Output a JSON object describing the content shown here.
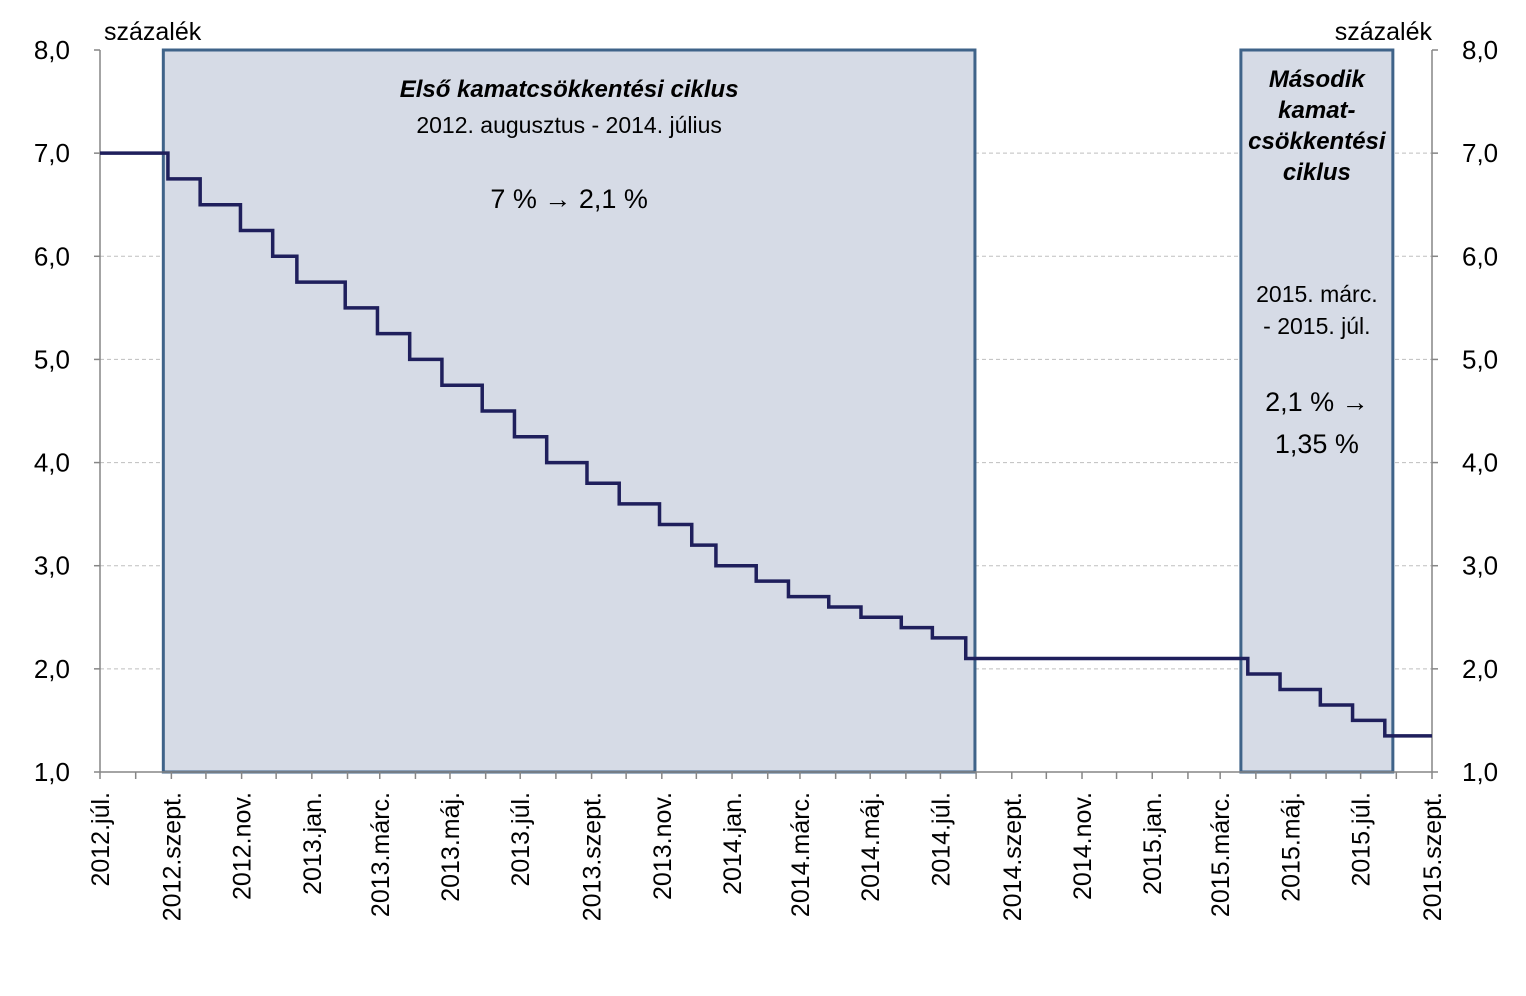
{
  "chart_data": {
    "type": "line",
    "unit_left": "százalék",
    "unit_right": "százalék",
    "ylim": [
      1.0,
      8.0
    ],
    "yticks": [
      "1,0",
      "2,0",
      "3,0",
      "4,0",
      "5,0",
      "6,0",
      "7,0",
      "8,0"
    ],
    "xlim": [
      "2012-07-01",
      "2015-09-01"
    ],
    "x_tick_labels": [
      "2012.júl.",
      "2012.szept.",
      "2012.nov.",
      "2013.jan.",
      "2013.márc.",
      "2013.máj.",
      "2013.júl.",
      "2013.szept.",
      "2013.nov.",
      "2014.jan.",
      "2014.márc.",
      "2014.máj.",
      "2014.júl.",
      "2014.szept.",
      "2014.nov.",
      "2015.jan.",
      "2015.márc.",
      "2015.máj.",
      "2015.júl.",
      "2015.szept."
    ],
    "grid": true,
    "colors": {
      "line": "#1f1f5c",
      "shade_fill": "#d6dbe6",
      "shade_stroke": "#3f6389",
      "grid": "#bfbfbf"
    },
    "series": [
      {
        "step": true,
        "points": [
          [
            "2012-07-01",
            7.0
          ],
          [
            "2012-08-29",
            6.75
          ],
          [
            "2012-09-26",
            6.5
          ],
          [
            "2012-10-31",
            6.25
          ],
          [
            "2012-11-28",
            6.0
          ],
          [
            "2012-12-19",
            5.75
          ],
          [
            "2013-01-30",
            5.5
          ],
          [
            "2013-02-27",
            5.25
          ],
          [
            "2013-03-27",
            5.0
          ],
          [
            "2013-04-24",
            4.75
          ],
          [
            "2013-05-29",
            4.5
          ],
          [
            "2013-06-26",
            4.25
          ],
          [
            "2013-07-24",
            4.0
          ],
          [
            "2013-08-28",
            3.8
          ],
          [
            "2013-09-25",
            3.6
          ],
          [
            "2013-10-30",
            3.4
          ],
          [
            "2013-11-27",
            3.2
          ],
          [
            "2013-12-18",
            3.0
          ],
          [
            "2014-01-22",
            2.85
          ],
          [
            "2014-02-19",
            2.7
          ],
          [
            "2014-03-26",
            2.6
          ],
          [
            "2014-04-23",
            2.5
          ],
          [
            "2014-05-28",
            2.4
          ],
          [
            "2014-06-24",
            2.3
          ],
          [
            "2014-07-23",
            2.1
          ],
          [
            "2015-03-25",
            1.95
          ],
          [
            "2015-04-22",
            1.8
          ],
          [
            "2015-05-27",
            1.65
          ],
          [
            "2015-06-24",
            1.5
          ],
          [
            "2015-07-22",
            1.35
          ],
          [
            "2015-09-01",
            1.35
          ]
        ]
      }
    ],
    "shaded_periods": [
      {
        "start": "2012-08-25",
        "end": "2014-07-31",
        "title": "Első kamatcsökkentési  ciklus",
        "lines": [
          "2012. augusztus - 2014. július"
        ],
        "change": "7 % → 2,1 %"
      },
      {
        "start": "2015-03-19",
        "end": "2015-07-29",
        "title_lines": [
          "Második",
          "kamat-",
          "csökkentési",
          "ciklus"
        ],
        "lines": [
          "2015. márc.",
          "- 2015. júl."
        ],
        "change_lines": [
          "2,1 % →",
          "1,35 %"
        ]
      }
    ]
  }
}
